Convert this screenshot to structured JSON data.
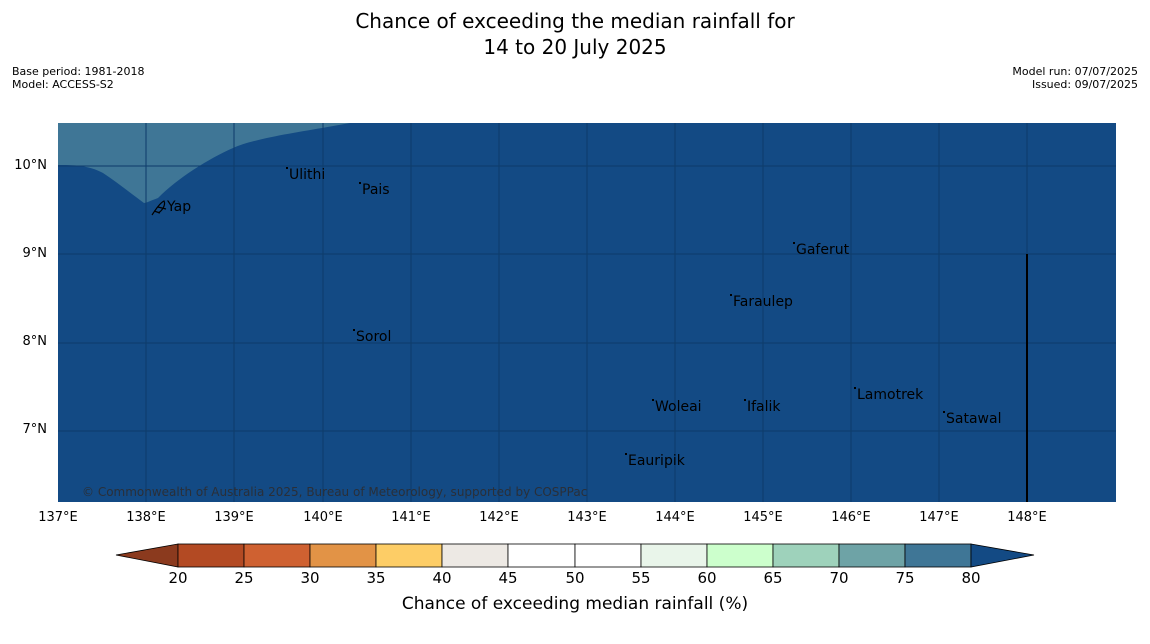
{
  "title_line1": "Chance of exceeding the median rainfall for",
  "title_line2": "14 to 20 July 2025",
  "meta_left": {
    "base_period": "Base period: 1981-2018",
    "model": "Model: ACCESS-S2"
  },
  "meta_right": {
    "model_run": "Model run: 07/07/2025",
    "issued": "Issued: 09/07/2025"
  },
  "map": {
    "background_color": "#134a84",
    "region_color": "#3f7696",
    "copyright": "© Commonwealth of Australia 2025, Bureau of Meteorology, supported by COSPPac",
    "lat_labels": [
      "10°N",
      "9°N",
      "8°N",
      "7°N"
    ],
    "lon_labels": [
      "137°E",
      "138°E",
      "139°E",
      "140°E",
      "141°E",
      "142°E",
      "143°E",
      "144°E",
      "145°E",
      "146°E",
      "147°E",
      "148°E"
    ],
    "places": [
      "Ulithi",
      "Pais",
      "Yap",
      "Gaferut",
      "Faraulep",
      "Sorol",
      "Lamotrek",
      "Woleai",
      "Ifalik",
      "Satawal",
      "Eauripik"
    ]
  },
  "colorbar": {
    "label": "Chance of exceeding median rainfall (%)",
    "ticks": [
      "20",
      "25",
      "30",
      "35",
      "40",
      "45",
      "50",
      "55",
      "60",
      "65",
      "70",
      "75",
      "80"
    ],
    "colors": [
      "#8b3a1e",
      "#b34a23",
      "#cf6131",
      "#e29346",
      "#fdcd66",
      "#ede9e4",
      "#ffffff",
      "#ffffff",
      "#e9f5ea",
      "#ccffcc",
      "#9ed2bb",
      "#6ea3a6",
      "#3f7696",
      "#134a84"
    ]
  }
}
